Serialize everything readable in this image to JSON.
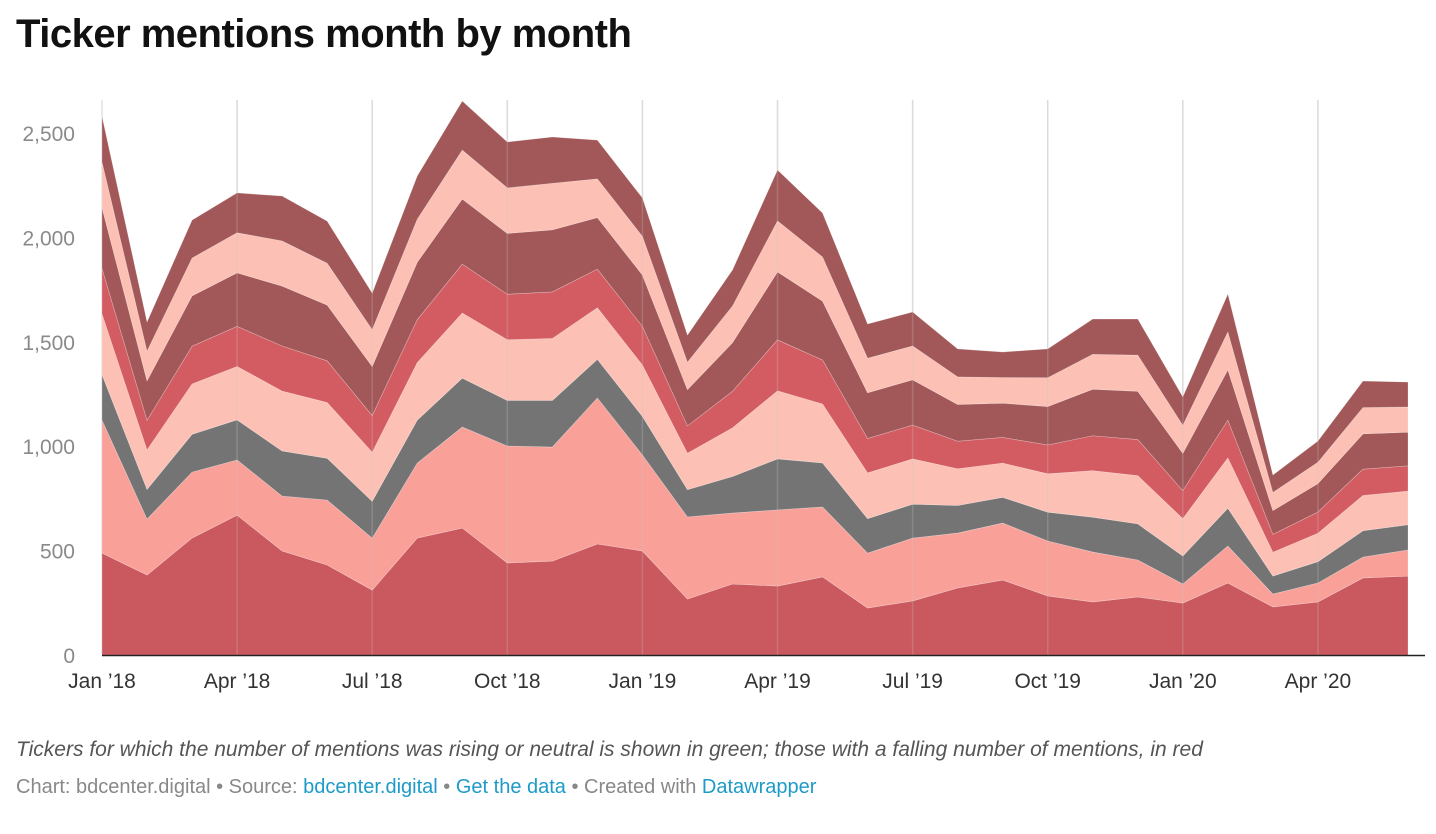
{
  "title": "Ticker mentions month by month",
  "notes": "Tickers for which the number of mentions was rising or neutral is shown in green; those with a falling number of mentions, in red",
  "footer": {
    "chart_prefix": "Chart: bdcenter.digital • Source: ",
    "source_link": "bdcenter.digital",
    "sep1": " • ",
    "data_link": "Get the data",
    "sep2": " • Created with ",
    "tool_link": "Datawrapper"
  },
  "chart_data": {
    "type": "area",
    "stacked": true,
    "title": "Ticker mentions month by month",
    "xlabel": "",
    "ylabel": "",
    "ylim": [
      0,
      2650
    ],
    "yticks": [
      0,
      500,
      1000,
      1500,
      2000,
      2500
    ],
    "ytick_labels": [
      "0",
      "500",
      "1,000",
      "1,500",
      "2,000",
      "2,500"
    ],
    "x": [
      "2018-01",
      "2018-02",
      "2018-03",
      "2018-04",
      "2018-05",
      "2018-06",
      "2018-07",
      "2018-08",
      "2018-09",
      "2018-10",
      "2018-11",
      "2018-12",
      "2019-01",
      "2019-02",
      "2019-03",
      "2019-04",
      "2019-05",
      "2019-06",
      "2019-07",
      "2019-08",
      "2019-09",
      "2019-10",
      "2019-11",
      "2019-12",
      "2020-01",
      "2020-02",
      "2020-03",
      "2020-04",
      "2020-05",
      "2020-06"
    ],
    "xticks": [
      {
        "month": "2018-01",
        "label": "Jan ’18"
      },
      {
        "month": "2018-04",
        "label": "Apr ’18"
      },
      {
        "month": "2018-07",
        "label": "Jul ’18"
      },
      {
        "month": "2018-10",
        "label": "Oct ’18"
      },
      {
        "month": "2019-01",
        "label": "Jan ’19"
      },
      {
        "month": "2019-04",
        "label": "Apr ’19"
      },
      {
        "month": "2019-07",
        "label": "Jul ’19"
      },
      {
        "month": "2019-10",
        "label": "Oct ’19"
      },
      {
        "month": "2020-01",
        "label": "Jan ’20"
      },
      {
        "month": "2020-04",
        "label": "Apr ’20"
      }
    ],
    "grid": {
      "vertical": true,
      "horizontal": false
    },
    "series": [
      {
        "color": "#c9595f",
        "values": [
          488,
          383,
          560,
          670,
          498,
          431,
          311,
          560,
          608,
          441,
          450,
          532,
          498,
          268,
          340,
          330,
          374,
          225,
          259,
          321,
          359,
          283,
          254,
          278,
          249,
          345,
          230,
          254,
          369,
          378
        ]
      },
      {
        "color": "#f9a099",
        "values": [
          637,
          268,
          316,
          264,
          263,
          311,
          249,
          359,
          484,
          560,
          546,
          699,
          460,
          393,
          340,
          365,
          335,
          263,
          301,
          263,
          273,
          263,
          239,
          177,
          91,
          177,
          62,
          91,
          100,
          125
        ]
      },
      {
        "color": "#747474",
        "values": [
          218,
          142,
          181,
          192,
          216,
          200,
          176,
          206,
          234,
          218,
          223,
          185,
          185,
          131,
          175,
          244,
          211,
          165,
          162,
          132,
          123,
          138,
          167,
          173,
          134,
          181,
          86,
          102,
          126,
          121
        ]
      },
      {
        "color": "#fdc0b4",
        "values": [
          291,
          189,
          241,
          256,
          287,
          267,
          235,
          275,
          312,
          291,
          297,
          247,
          246,
          174,
          233,
          326,
          282,
          219,
          217,
          176,
          164,
          184,
          223,
          231,
          179,
          241,
          114,
          136,
          169,
          161
        ]
      },
      {
        "color": "#d35c63",
        "values": [
          218,
          142,
          181,
          192,
          216,
          200,
          176,
          206,
          234,
          218,
          223,
          185,
          185,
          131,
          175,
          244,
          211,
          165,
          162,
          132,
          123,
          138,
          167,
          173,
          134,
          181,
          86,
          102,
          126,
          121
        ]
      },
      {
        "color": "#a25858",
        "values": [
          291,
          189,
          241,
          256,
          287,
          267,
          235,
          275,
          312,
          291,
          297,
          247,
          246,
          174,
          233,
          326,
          282,
          219,
          217,
          176,
          164,
          184,
          223,
          231,
          179,
          241,
          114,
          136,
          169,
          161
        ]
      },
      {
        "color": "#fdc0b4",
        "values": [
          218,
          142,
          181,
          192,
          216,
          200,
          176,
          206,
          234,
          218,
          223,
          185,
          185,
          131,
          175,
          244,
          211,
          165,
          162,
          132,
          123,
          138,
          167,
          173,
          134,
          181,
          86,
          102,
          126,
          121
        ]
      },
      {
        "color": "#a25858",
        "values": [
          219,
          140,
          182,
          191,
          215,
          202,
          175,
          207,
          235,
          220,
          222,
          186,
          184,
          130,
          173,
          244,
          211,
          164,
          163,
          134,
          122,
          138,
          169,
          173,
          136,
          182,
          84,
          102,
          127,
          119
        ]
      }
    ]
  }
}
